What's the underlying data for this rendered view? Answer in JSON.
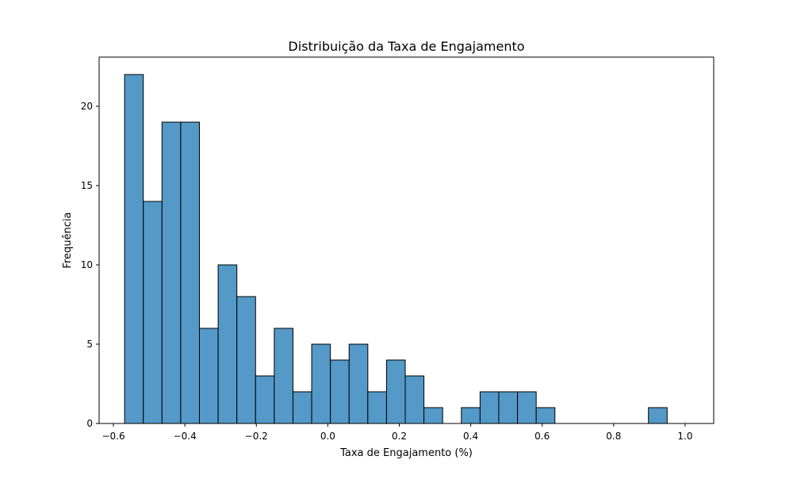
{
  "chart_data": {
    "type": "bar",
    "subtype": "histogram",
    "title": "Distribuição da Taxa de Engajamento",
    "xlabel": "Taxa de Engajamento (%)",
    "ylabel": "Frequência",
    "xlim": [
      -0.64,
      1.08
    ],
    "ylim": [
      0,
      23.1
    ],
    "xticks": [
      -0.6,
      -0.4,
      -0.2,
      0.0,
      0.2,
      0.4,
      0.6,
      0.8,
      1.0
    ],
    "xtick_labels": [
      "−0.6",
      "−0.4",
      "−0.2",
      "0.0",
      "0.2",
      "0.4",
      "0.6",
      "0.8",
      "1.0"
    ],
    "yticks": [
      0,
      5,
      10,
      15,
      20
    ],
    "ytick_labels": [
      "0",
      "5",
      "10",
      "15",
      "20"
    ],
    "grid": false,
    "legend": false,
    "bar_color": "#5499c7",
    "edge_color": "#000000",
    "bin_start": -0.5687,
    "bin_width": 0.05236,
    "values": [
      22,
      14,
      19,
      19,
      6,
      10,
      8,
      3,
      6,
      2,
      5,
      4,
      5,
      2,
      4,
      3,
      1,
      0,
      1,
      2,
      2,
      2,
      1,
      0,
      0,
      0,
      0,
      0,
      1
    ]
  }
}
